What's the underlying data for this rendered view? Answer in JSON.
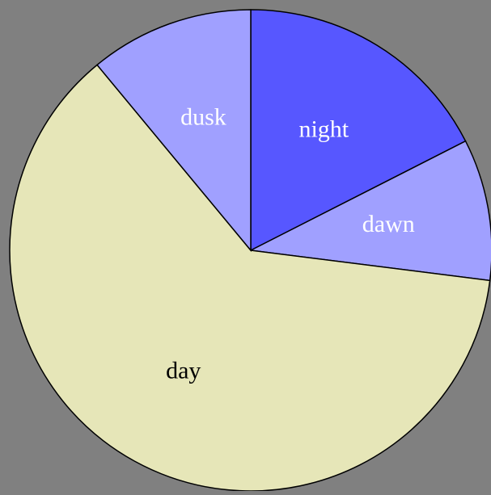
{
  "chart_data": {
    "type": "pie",
    "title": "",
    "start_angle_deg": 0,
    "direction": "clockwise",
    "slices": [
      {
        "label": "night",
        "value": 17.5,
        "color": "#5757ff",
        "label_color": "#ffffff"
      },
      {
        "label": "dawn",
        "value": 9.5,
        "color": "#a0a0ff",
        "label_color": "#ffffff"
      },
      {
        "label": "day",
        "value": 62.0,
        "color": "#e6e6b8",
        "label_color": "#000000"
      },
      {
        "label": "dusk",
        "value": 11.0,
        "color": "#a0a0ff",
        "label_color": "#ffffff"
      }
    ]
  },
  "style": {
    "background": "#808080",
    "stroke": "#000000"
  }
}
